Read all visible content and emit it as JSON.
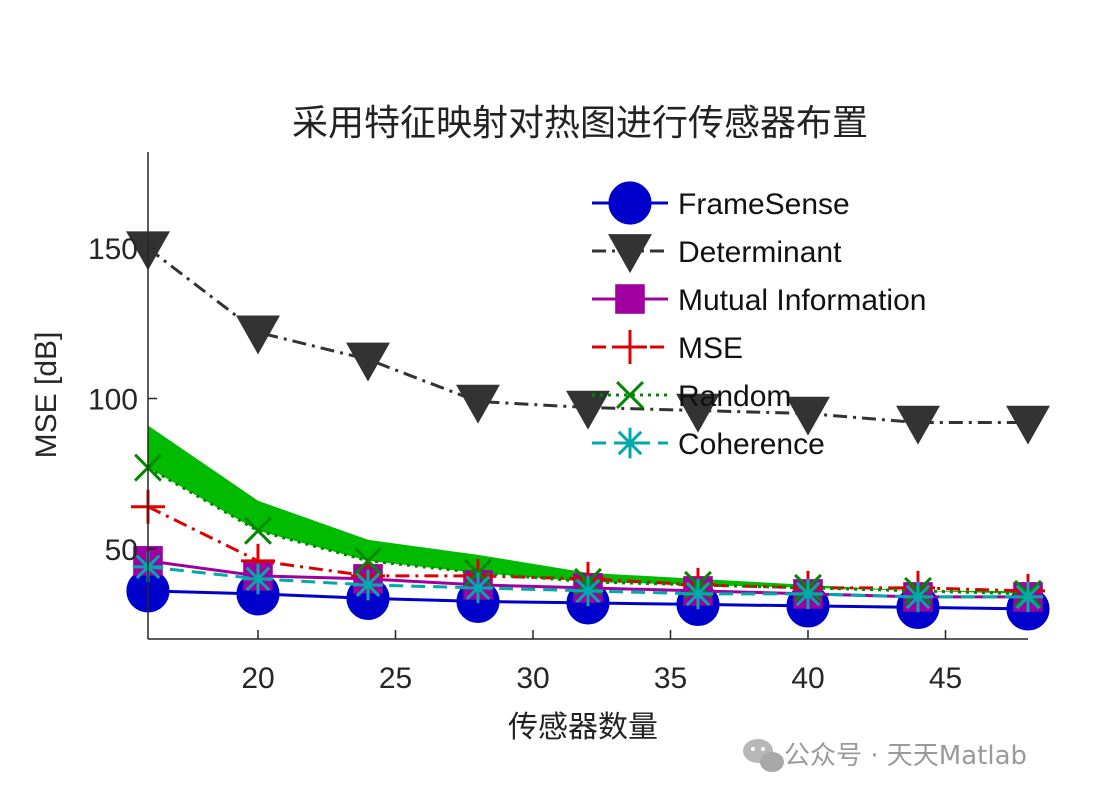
{
  "chart_data": {
    "type": "line",
    "title": "采用特征映射对热图进行传感器布置",
    "xlabel": "传感器数量",
    "ylabel": "MSE [dB]",
    "xlim": [
      16,
      48
    ],
    "ylim": [
      20,
      182
    ],
    "xticks": [
      20,
      25,
      30,
      35,
      40,
      45
    ],
    "yticks": [
      50,
      100,
      150
    ],
    "x": [
      16,
      20,
      24,
      28,
      32,
      36,
      40,
      44,
      48
    ],
    "series": [
      {
        "name": "FrameSense",
        "color": "#0000CC",
        "dash": "solid",
        "marker": "circle",
        "values": [
          36,
          35,
          33.5,
          32.5,
          32,
          31.5,
          31,
          30.5,
          30
        ]
      },
      {
        "name": "Determinant",
        "color": "#333333",
        "dash": "dashdot",
        "marker": "triangle-down",
        "values": [
          150,
          122,
          113,
          99,
          97,
          96,
          95,
          92,
          92
        ]
      },
      {
        "name": "Mutual Information",
        "color": "#A000A0",
        "dash": "solid",
        "marker": "square",
        "values": [
          46,
          41,
          40,
          38,
          37,
          36,
          35,
          34,
          34
        ]
      },
      {
        "name": "MSE",
        "color": "#DD0000",
        "dash": "dashdot",
        "marker": "plus",
        "values": [
          64,
          46,
          41,
          41,
          40,
          38,
          37,
          37,
          36
        ]
      },
      {
        "name": "Random",
        "color": "#008800",
        "dash": "dotted",
        "marker": "x",
        "values": [
          77,
          56,
          46,
          42,
          39,
          38,
          37,
          36,
          35
        ]
      },
      {
        "name": "Coherence",
        "color": "#00AAAA",
        "dash": "dashed",
        "marker": "asterisk",
        "values": [
          44,
          40,
          38,
          37,
          36,
          35,
          35,
          34,
          34
        ]
      }
    ],
    "band": {
      "color": "#00BB00",
      "upper": [
        91,
        66,
        53,
        48,
        42,
        40,
        38,
        36,
        36
      ],
      "lower": [
        77,
        56,
        46,
        42,
        39,
        38,
        37,
        36,
        35
      ]
    },
    "legend_position": "top-right",
    "grid": false
  },
  "watermark": "公众号 · 天天Matlab"
}
